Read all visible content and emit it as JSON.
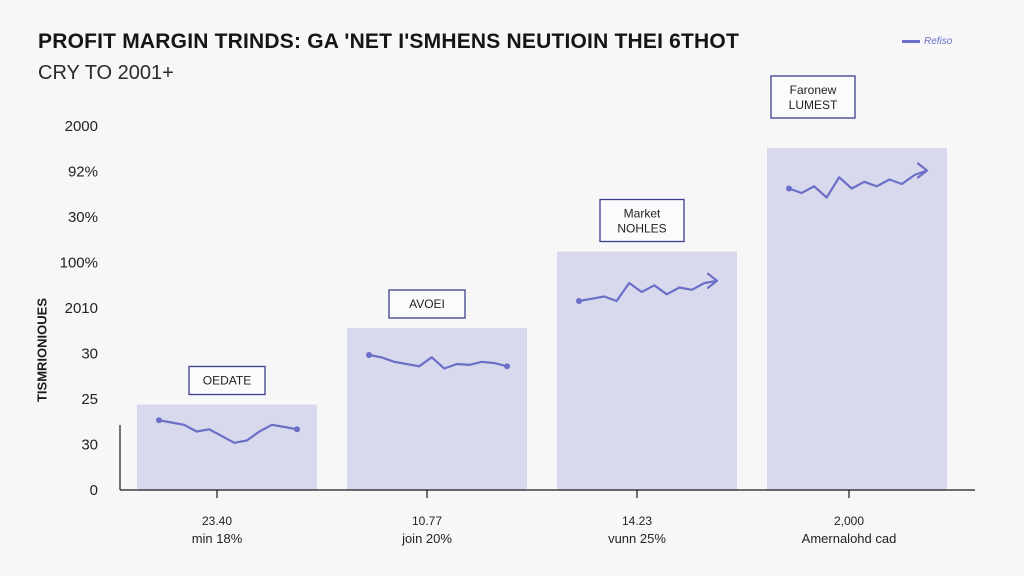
{
  "chart_data": {
    "type": "bar",
    "title": "PROFIT MARGIN TRINDS: GA 'NET I'SMHENS NEUTIOIN THEI 6THOT",
    "subtitle": "CRY TO 2001+",
    "ylabel": "TISMRIONIOUES",
    "legend_label": "Refiso",
    "y_tick_labels": [
      "0",
      "30",
      "25",
      "30",
      "2010",
      "100%",
      "30%",
      "92%",
      "2000"
    ],
    "categories": [
      {
        "line1": "23.40",
        "line2": "min 18%"
      },
      {
        "line1": "10.77",
        "line2": "join 20%"
      },
      {
        "line1": "14.23",
        "line2": "vunn 25%"
      },
      {
        "line1": "2,000",
        "line2": "Amernalohd cad"
      }
    ],
    "values": [
      1.9,
      3.6,
      5.3,
      7.6
    ],
    "ylim": [
      0,
      8
    ],
    "bar_labels": [
      {
        "lines": [
          "OEDATE"
        ]
      },
      {
        "lines": [
          "AVOEI"
        ]
      },
      {
        "lines": [
          "Market",
          "NOHLES"
        ]
      },
      {
        "lines": [
          "Faronew",
          "LUMEST"
        ]
      }
    ],
    "sparklines": [
      [
        1.55,
        1.5,
        1.45,
        1.3,
        1.35,
        1.2,
        1.05,
        1.1,
        1.3,
        1.45,
        1.4,
        1.35
      ],
      [
        3.0,
        2.95,
        2.85,
        2.8,
        2.75,
        2.95,
        2.7,
        2.8,
        2.78,
        2.85,
        2.82,
        2.75
      ],
      [
        4.2,
        4.25,
        4.3,
        4.2,
        4.6,
        4.4,
        4.55,
        4.35,
        4.5,
        4.45,
        4.6,
        4.65
      ],
      [
        6.7,
        6.6,
        6.75,
        6.5,
        6.95,
        6.7,
        6.85,
        6.75,
        6.9,
        6.8,
        7.0,
        7.1
      ]
    ],
    "colors": {
      "bar_fill": "#d9d9ee",
      "line": "#6b6fc7",
      "axis": "#1a1a1a"
    },
    "grid": false,
    "legend_position": "top-right"
  }
}
